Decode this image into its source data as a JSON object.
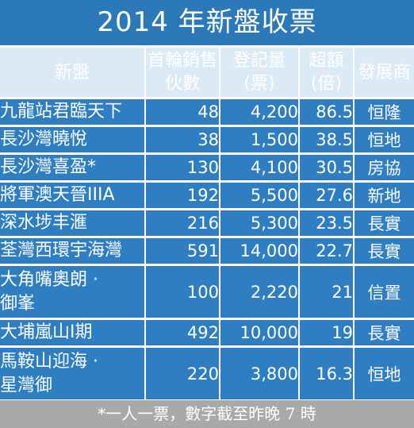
{
  "title": "2014 年新盤收票",
  "chart_data": {
    "type": "table",
    "columns": [
      {
        "key": "name",
        "label_lines": [
          "新盤"
        ]
      },
      {
        "key": "first_round_units",
        "label_lines": [
          "首輪銷售",
          "伙數"
        ]
      },
      {
        "key": "registered_tickets",
        "label_lines": [
          "登記量",
          "(票)"
        ]
      },
      {
        "key": "oversubscribed",
        "label_lines": [
          "超額",
          "(倍)"
        ]
      },
      {
        "key": "developer",
        "label_lines": [
          "發展商"
        ]
      }
    ],
    "rows": [
      {
        "name_lines": [
          "九龍站君臨天下"
        ],
        "first_round_units": "48",
        "registered_tickets": "4,200",
        "oversubscribed": "86.5",
        "developer": "恒隆"
      },
      {
        "name_lines": [
          "長沙灣曉悅"
        ],
        "first_round_units": "38",
        "registered_tickets": "1,500",
        "oversubscribed": "38.5",
        "developer": "恒地"
      },
      {
        "name_lines": [
          "長沙灣喜盈*"
        ],
        "first_round_units": "130",
        "registered_tickets": "4,100",
        "oversubscribed": "30.5",
        "developer": "房協"
      },
      {
        "name_lines": [
          "將軍澳天晉IIIA"
        ],
        "first_round_units": "192",
        "registered_tickets": "5,500",
        "oversubscribed": "27.6",
        "developer": "新地"
      },
      {
        "name_lines": [
          "深水埗丰滙"
        ],
        "first_round_units": "216",
        "registered_tickets": "5,300",
        "oversubscribed": "23.5",
        "developer": "長實"
      },
      {
        "name_lines": [
          "荃灣西環宇海灣"
        ],
        "first_round_units": "591",
        "registered_tickets": "14,000",
        "oversubscribed": "22.7",
        "developer": "長實"
      },
      {
        "name_lines": [
          "大角嘴奧朗 ·",
          "御峯"
        ],
        "first_round_units": "100",
        "registered_tickets": "2,220",
        "oversubscribed": "21",
        "developer": "信置"
      },
      {
        "name_lines": [
          "大埔嵐山I期"
        ],
        "first_round_units": "492",
        "registered_tickets": "10,000",
        "oversubscribed": "19",
        "developer": "長實"
      },
      {
        "name_lines": [
          "馬鞍山迎海 ·",
          "星灣御"
        ],
        "first_round_units": "220",
        "registered_tickets": "3,800",
        "oversubscribed": "16.3",
        "developer": "恒地"
      }
    ]
  },
  "footnote": "*一人一票，數字截至昨晚 7 時",
  "colors": {
    "title_bg": "#2b79b9",
    "header_bg": "#dceaf6",
    "cell_bg": "#2f7ec2",
    "footer_bg": "#a9a9a9"
  }
}
